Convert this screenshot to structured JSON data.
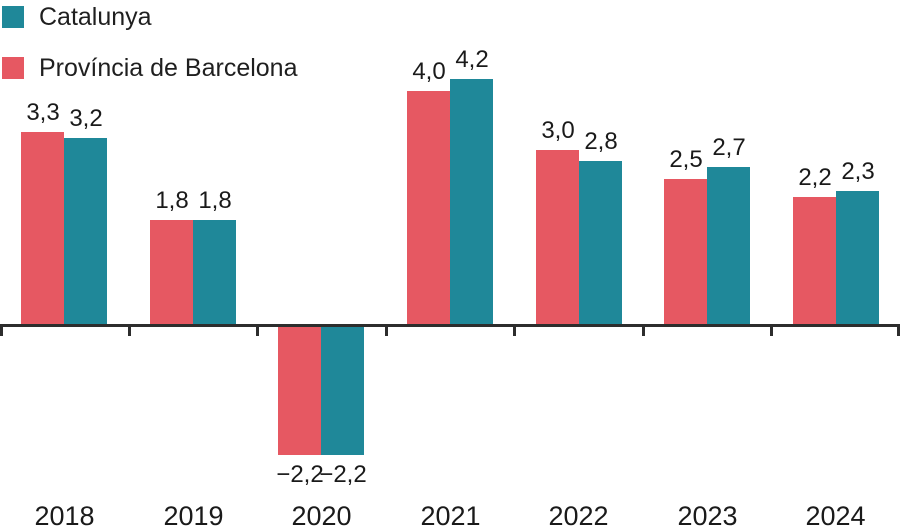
{
  "legend": {
    "items": [
      {
        "label": "Catalunya",
        "color": "#1f8899"
      },
      {
        "label": "Província de Barcelona",
        "color": "#e65862"
      }
    ]
  },
  "axis": {
    "line_color": "#2d2d2d"
  },
  "chart_data": {
    "type": "bar",
    "title": "",
    "xlabel": "",
    "ylabel": "",
    "categories": [
      "2018",
      "2019",
      "2020",
      "2021",
      "2022",
      "2023",
      "2024"
    ],
    "series": [
      {
        "name": "Província de Barcelona",
        "color": "#e65862",
        "values": [
          3.3,
          1.8,
          -2.2,
          4.0,
          3.0,
          2.5,
          2.2
        ],
        "labels": [
          "3,3",
          "1,8",
          "−2,2",
          "4,0",
          "3,0",
          "2,5",
          "2,2"
        ]
      },
      {
        "name": "Catalunya",
        "color": "#1f8899",
        "values": [
          3.2,
          1.8,
          -2.2,
          4.2,
          2.8,
          2.7,
          2.3
        ],
        "labels": [
          "3,2",
          "1,8",
          "−2,2",
          "4,2",
          "2,8",
          "2,7",
          "2,3"
        ]
      }
    ],
    "ylim": [
      -3.5,
      5.5
    ],
    "grid": false,
    "legend_position": "top-left",
    "value_labels": true,
    "decimal_separator": ","
  }
}
